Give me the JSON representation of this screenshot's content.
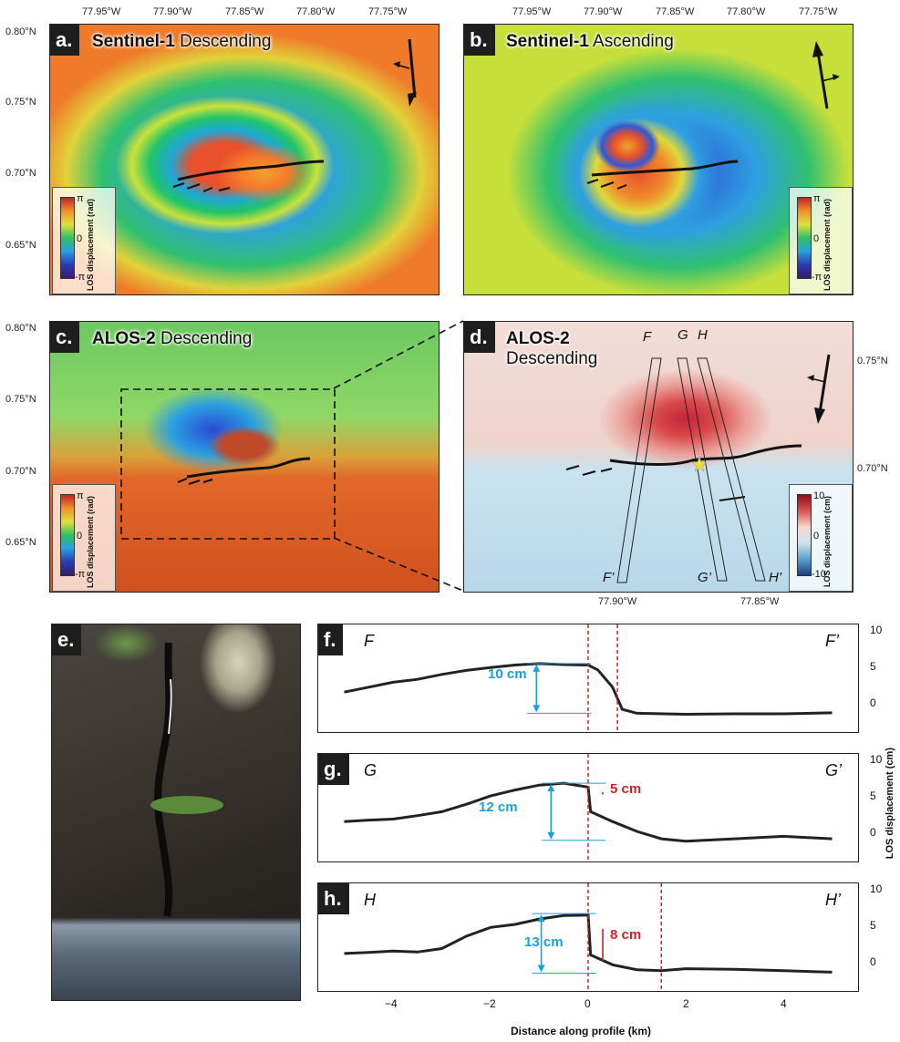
{
  "lon_ticks": [
    "77.95°W",
    "77.90°W",
    "77.85°W",
    "77.80°W",
    "77.75°W"
  ],
  "lat_ticks": [
    "0.80°N",
    "0.75°N",
    "0.70°N",
    "0.65°N"
  ],
  "panels": {
    "a": {
      "tag": "a.",
      "sat": "Sentinel-1",
      "mode": "Descending"
    },
    "b": {
      "tag": "b.",
      "sat": "Sentinel-1",
      "mode": "Ascending"
    },
    "c": {
      "tag": "c.",
      "sat": "ALOS-2",
      "mode": "Descending"
    },
    "d": {
      "tag": "d.",
      "sat": "ALOS-2",
      "mode": "Descending"
    },
    "e": {
      "tag": "e."
    },
    "f": {
      "tag": "f."
    },
    "g": {
      "tag": "g."
    },
    "h": {
      "tag": "h."
    }
  },
  "phase_colorbar": {
    "top": "π",
    "mid": "0",
    "bottom": "-π",
    "label": "LOS displacement (rad)"
  },
  "disp_colorbar": {
    "top": "10",
    "mid": "0",
    "bottom": "-10",
    "label": "LOS displacement (cm)"
  },
  "panel_d_ticks": {
    "lon": [
      "77.90°W",
      "77.85°W"
    ],
    "lat": [
      "0.75°N",
      "0.70°N"
    ]
  },
  "profile_letters": {
    "F": "F",
    "G": "G",
    "H": "H",
    "Fp": "F’",
    "Gp": "G’",
    "Hp": "H’"
  },
  "profiles": {
    "f": {
      "offset_label": "10 cm"
    },
    "g": {
      "offset_label": "12 cm",
      "step_label": "5 cm"
    },
    "h": {
      "offset_label": "13 cm",
      "step_label": "8 cm"
    }
  },
  "profile_y_ticks": [
    "10",
    "5",
    "0"
  ],
  "x_axis": {
    "ticks": [
      "−4",
      "−2",
      "0",
      "2",
      "4"
    ],
    "label": "Distance along profile (km)"
  },
  "y_axis_label": "LOS displacement (cm)",
  "colors": {
    "offset": "#1aa0dc",
    "step": "#d0202a",
    "trace": "#222222"
  }
}
